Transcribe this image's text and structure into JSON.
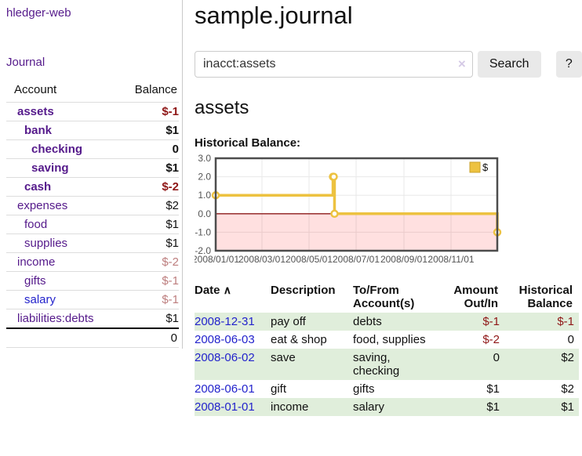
{
  "app": {
    "brand": "hledger-web"
  },
  "sidebar": {
    "journal_link": "Journal",
    "accounts": {
      "header_account": "Account",
      "header_balance": "Balance",
      "rows": [
        {
          "name": "assets",
          "balance": "$-1"
        },
        {
          "name": "bank",
          "balance": "$1"
        },
        {
          "name": "checking",
          "balance": "0"
        },
        {
          "name": "saving",
          "balance": "$1"
        },
        {
          "name": "cash",
          "balance": "$-2"
        },
        {
          "name": "expenses",
          "balance": "$2"
        },
        {
          "name": "food",
          "balance": "$1"
        },
        {
          "name": "supplies",
          "balance": "$1"
        },
        {
          "name": "income",
          "balance": "$-2"
        },
        {
          "name": "gifts",
          "balance": "$-1"
        },
        {
          "name": "salary",
          "balance": "$-1"
        },
        {
          "name": "liabilities:debts",
          "balance": "$1"
        }
      ],
      "total": "0"
    }
  },
  "header": {
    "title": "sample.journal"
  },
  "search": {
    "value": "inacct:assets",
    "clear_icon": "×",
    "search_button": "Search",
    "help_button": "?"
  },
  "account_view": {
    "heading": "assets",
    "chart_title": "Historical Balance:"
  },
  "chart_data": {
    "type": "line",
    "steps": true,
    "title": "Historical Balance",
    "legend_position": "top-right",
    "grid": true,
    "ylim": [
      -2,
      3
    ],
    "yticks": [
      3,
      2,
      1,
      0,
      -1,
      -2
    ],
    "xlim": [
      "2008-01-01",
      "2008-12-31"
    ],
    "xticks": [
      {
        "date": "2008-01-01",
        "label": "2008/01/01"
      },
      {
        "date": "2008-03-01",
        "label": "2008/03/01"
      },
      {
        "date": "2008-05-01",
        "label": "2008/05/01"
      },
      {
        "date": "2008-07-01",
        "label": "2008/07/01"
      },
      {
        "date": "2008-09-01",
        "label": "2008/09/01"
      },
      {
        "date": "2008-11-01",
        "label": "2008/11/01"
      }
    ],
    "series": [
      {
        "name": "$",
        "color": "#edc240",
        "x": [
          "2008-01-01",
          "2008-06-01",
          "2008-06-02",
          "2008-06-03",
          "2008-12-31"
        ],
        "y": [
          1,
          2,
          2,
          0,
          -1
        ]
      }
    ],
    "negative_region_color": "rgba(255,0,0,0.12)",
    "zero_line_color": "#8b1a1a"
  },
  "register": {
    "sort_indicator": "∧",
    "headers": {
      "date": "Date",
      "description": "Description",
      "accounts": "To/From Account(s)",
      "amount": "Amount Out/In",
      "balance": "Historical Balance"
    },
    "rows": [
      {
        "date": "2008-12-31",
        "description": "pay off",
        "accounts": "debts",
        "amount": "$-1",
        "balance": "$-1"
      },
      {
        "date": "2008-06-03",
        "description": "eat & shop",
        "accounts": "food, supplies",
        "amount": "$-2",
        "balance": "0"
      },
      {
        "date": "2008-06-02",
        "description": "save",
        "accounts": "saving, checking",
        "amount": "0",
        "balance": "$2"
      },
      {
        "date": "2008-06-01",
        "description": "gift",
        "accounts": "gifts",
        "amount": "$1",
        "balance": "$2"
      },
      {
        "date": "2008-01-01",
        "description": "income",
        "accounts": "salary",
        "amount": "$1",
        "balance": "$1"
      }
    ]
  },
  "colors": {
    "link_purple": "#551a8b",
    "link_blue": "#2323cc",
    "negative_strong": "#8f1717",
    "negative_soft": "#bd7e7e",
    "row_green": "#e0eedb",
    "series_gold": "#edc240",
    "chart_border": "#4d4d4d"
  }
}
